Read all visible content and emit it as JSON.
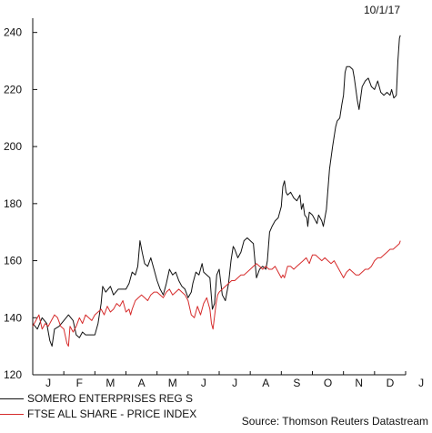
{
  "chart_data": {
    "type": "line",
    "date_label": "10/1/17",
    "ylim": [
      120,
      245
    ],
    "yticks": [
      120,
      140,
      160,
      180,
      200,
      220,
      240
    ],
    "xlabels": [
      "J",
      "F",
      "M",
      "A",
      "M",
      "J",
      "J",
      "A",
      "S",
      "O",
      "N",
      "D",
      "J"
    ],
    "grid": false,
    "legend_placement": "bottom-left",
    "source": "Source: Thomson Reuters Datastream",
    "series": [
      {
        "name": "SOMERO ENTERPRISES REG S",
        "color": "#111111",
        "points": [
          [
            0,
            138
          ],
          [
            0.15,
            136
          ],
          [
            0.3,
            140
          ],
          [
            0.45,
            138
          ],
          [
            0.55,
            132
          ],
          [
            0.62,
            130
          ],
          [
            0.7,
            136
          ],
          [
            0.85,
            137
          ],
          [
            1.0,
            139
          ],
          [
            1.15,
            141
          ],
          [
            1.3,
            139
          ],
          [
            1.4,
            134
          ],
          [
            1.5,
            133
          ],
          [
            1.6,
            135
          ],
          [
            1.7,
            134
          ],
          [
            1.85,
            134
          ],
          [
            2.0,
            134
          ],
          [
            2.1,
            138
          ],
          [
            2.2,
            145
          ],
          [
            2.25,
            151
          ],
          [
            2.35,
            149
          ],
          [
            2.5,
            151
          ],
          [
            2.6,
            148
          ],
          [
            2.75,
            150
          ],
          [
            2.9,
            150
          ],
          [
            3.0,
            150
          ],
          [
            3.1,
            152
          ],
          [
            3.2,
            156
          ],
          [
            3.3,
            155
          ],
          [
            3.38,
            158
          ],
          [
            3.45,
            167
          ],
          [
            3.52,
            163
          ],
          [
            3.6,
            159
          ],
          [
            3.7,
            158
          ],
          [
            3.8,
            161
          ],
          [
            3.9,
            157
          ],
          [
            4.0,
            153
          ],
          [
            4.1,
            150
          ],
          [
            4.2,
            148
          ],
          [
            4.3,
            152
          ],
          [
            4.4,
            157
          ],
          [
            4.5,
            155
          ],
          [
            4.6,
            156
          ],
          [
            4.7,
            153
          ],
          [
            4.8,
            151
          ],
          [
            4.9,
            150
          ],
          [
            5.0,
            147
          ],
          [
            5.1,
            149
          ],
          [
            5.15,
            152
          ],
          [
            5.25,
            156
          ],
          [
            5.35,
            155
          ],
          [
            5.45,
            159
          ],
          [
            5.5,
            156
          ],
          [
            5.6,
            155
          ],
          [
            5.7,
            154
          ],
          [
            5.78,
            143
          ],
          [
            5.85,
            145
          ],
          [
            5.92,
            155
          ],
          [
            6.0,
            157
          ],
          [
            6.1,
            148
          ],
          [
            6.2,
            146
          ],
          [
            6.3,
            152
          ],
          [
            6.38,
            160
          ],
          [
            6.45,
            165
          ],
          [
            6.5,
            164
          ],
          [
            6.6,
            161
          ],
          [
            6.7,
            163
          ],
          [
            6.8,
            167
          ],
          [
            6.9,
            168
          ],
          [
            7.0,
            167
          ],
          [
            7.1,
            166
          ],
          [
            7.15,
            160
          ],
          [
            7.2,
            154
          ],
          [
            7.3,
            157
          ],
          [
            7.4,
            158
          ],
          [
            7.5,
            157
          ],
          [
            7.55,
            160
          ],
          [
            7.62,
            170
          ],
          [
            7.7,
            172
          ],
          [
            7.8,
            174
          ],
          [
            7.9,
            175
          ],
          [
            8.0,
            179
          ],
          [
            8.05,
            186
          ],
          [
            8.1,
            188
          ],
          [
            8.15,
            184
          ],
          [
            8.2,
            183
          ],
          [
            8.3,
            184
          ],
          [
            8.4,
            182
          ],
          [
            8.5,
            181
          ],
          [
            8.55,
            182
          ],
          [
            8.6,
            183
          ],
          [
            8.65,
            178
          ],
          [
            8.7,
            180
          ],
          [
            8.75,
            176
          ],
          [
            8.82,
            175
          ],
          [
            8.85,
            172
          ],
          [
            8.9,
            177
          ],
          [
            9.0,
            176
          ],
          [
            9.1,
            174
          ],
          [
            9.15,
            173
          ],
          [
            9.2,
            176
          ],
          [
            9.3,
            174
          ],
          [
            9.35,
            172
          ],
          [
            9.45,
            178
          ],
          [
            9.55,
            192
          ],
          [
            9.65,
            200
          ],
          [
            9.75,
            207
          ],
          [
            9.8,
            209
          ],
          [
            9.88,
            210
          ],
          [
            9.95,
            215
          ],
          [
            10.0,
            218
          ],
          [
            10.05,
            226
          ],
          [
            10.1,
            228
          ],
          [
            10.2,
            228
          ],
          [
            10.3,
            227
          ],
          [
            10.35,
            224
          ],
          [
            10.45,
            216
          ],
          [
            10.5,
            213
          ],
          [
            10.55,
            217
          ],
          [
            10.6,
            221
          ],
          [
            10.7,
            223
          ],
          [
            10.8,
            224
          ],
          [
            10.9,
            221
          ],
          [
            11.0,
            220
          ],
          [
            11.1,
            223
          ],
          [
            11.2,
            219
          ],
          [
            11.3,
            218
          ],
          [
            11.4,
            219
          ],
          [
            11.5,
            218
          ],
          [
            11.55,
            220
          ],
          [
            11.62,
            217
          ],
          [
            11.7,
            218
          ],
          [
            11.75,
            230
          ],
          [
            11.8,
            238
          ],
          [
            11.83,
            239
          ]
        ]
      },
      {
        "name": "FTSE ALL SHARE - PRICE INDEX",
        "color": "#d62c2c",
        "points": [
          [
            0,
            137
          ],
          [
            0.1,
            139
          ],
          [
            0.2,
            141
          ],
          [
            0.3,
            136
          ],
          [
            0.4,
            138
          ],
          [
            0.5,
            137
          ],
          [
            0.6,
            139
          ],
          [
            0.7,
            141
          ],
          [
            0.8,
            140
          ],
          [
            0.9,
            137
          ],
          [
            1.0,
            136
          ],
          [
            1.1,
            131
          ],
          [
            1.15,
            130
          ],
          [
            1.2,
            137
          ],
          [
            1.3,
            135
          ],
          [
            1.4,
            137
          ],
          [
            1.5,
            140
          ],
          [
            1.6,
            138
          ],
          [
            1.7,
            141
          ],
          [
            1.8,
            140
          ],
          [
            1.9,
            139
          ],
          [
            2.0,
            141
          ],
          [
            2.1,
            142
          ],
          [
            2.2,
            143
          ],
          [
            2.3,
            141
          ],
          [
            2.4,
            144
          ],
          [
            2.5,
            142
          ],
          [
            2.6,
            143
          ],
          [
            2.7,
            145
          ],
          [
            2.8,
            144
          ],
          [
            2.9,
            146
          ],
          [
            3.0,
            142
          ],
          [
            3.1,
            143
          ],
          [
            3.15,
            141
          ],
          [
            3.2,
            143
          ],
          [
            3.3,
            146
          ],
          [
            3.4,
            147
          ],
          [
            3.5,
            148
          ],
          [
            3.6,
            147
          ],
          [
            3.7,
            146
          ],
          [
            3.8,
            148
          ],
          [
            3.9,
            149
          ],
          [
            4.0,
            149
          ],
          [
            4.1,
            148
          ],
          [
            4.2,
            147
          ],
          [
            4.3,
            149
          ],
          [
            4.4,
            150
          ],
          [
            4.5,
            148
          ],
          [
            4.6,
            149
          ],
          [
            4.7,
            150
          ],
          [
            4.8,
            149
          ],
          [
            4.9,
            148
          ],
          [
            5.0,
            146
          ],
          [
            5.1,
            141
          ],
          [
            5.2,
            140
          ],
          [
            5.3,
            144
          ],
          [
            5.4,
            141
          ],
          [
            5.5,
            145
          ],
          [
            5.6,
            147
          ],
          [
            5.7,
            143
          ],
          [
            5.75,
            138
          ],
          [
            5.8,
            136
          ],
          [
            5.9,
            145
          ],
          [
            5.95,
            148
          ],
          [
            6.0,
            149
          ],
          [
            6.1,
            150
          ],
          [
            6.2,
            151
          ],
          [
            6.3,
            152
          ],
          [
            6.4,
            153
          ],
          [
            6.5,
            153
          ],
          [
            6.6,
            154
          ],
          [
            6.7,
            155
          ],
          [
            6.8,
            155
          ],
          [
            6.9,
            156
          ],
          [
            7.0,
            157
          ],
          [
            7.1,
            158
          ],
          [
            7.2,
            159
          ],
          [
            7.3,
            158
          ],
          [
            7.4,
            157
          ],
          [
            7.5,
            158
          ],
          [
            7.6,
            157
          ],
          [
            7.7,
            157
          ],
          [
            7.8,
            158
          ],
          [
            7.9,
            156
          ],
          [
            8.0,
            154
          ],
          [
            8.05,
            155
          ],
          [
            8.1,
            154
          ],
          [
            8.15,
            156
          ],
          [
            8.2,
            158
          ],
          [
            8.3,
            158
          ],
          [
            8.4,
            157
          ],
          [
            8.5,
            158
          ],
          [
            8.6,
            159
          ],
          [
            8.7,
            160
          ],
          [
            8.8,
            161
          ],
          [
            8.9,
            159
          ],
          [
            9.0,
            162
          ],
          [
            9.1,
            162
          ],
          [
            9.2,
            161
          ],
          [
            9.3,
            160
          ],
          [
            9.4,
            161
          ],
          [
            9.5,
            160
          ],
          [
            9.6,
            159
          ],
          [
            9.7,
            160
          ],
          [
            9.8,
            158
          ],
          [
            9.9,
            156
          ],
          [
            10.0,
            154
          ],
          [
            10.1,
            156
          ],
          [
            10.2,
            157
          ],
          [
            10.3,
            156
          ],
          [
            10.4,
            155
          ],
          [
            10.5,
            155
          ],
          [
            10.6,
            156
          ],
          [
            10.7,
            157
          ],
          [
            10.8,
            157
          ],
          [
            10.9,
            158
          ],
          [
            11.0,
            160
          ],
          [
            11.1,
            161
          ],
          [
            11.2,
            161
          ],
          [
            11.3,
            162
          ],
          [
            11.4,
            163
          ],
          [
            11.5,
            164
          ],
          [
            11.6,
            164
          ],
          [
            11.7,
            165
          ],
          [
            11.8,
            166
          ],
          [
            11.83,
            167
          ]
        ]
      }
    ]
  }
}
